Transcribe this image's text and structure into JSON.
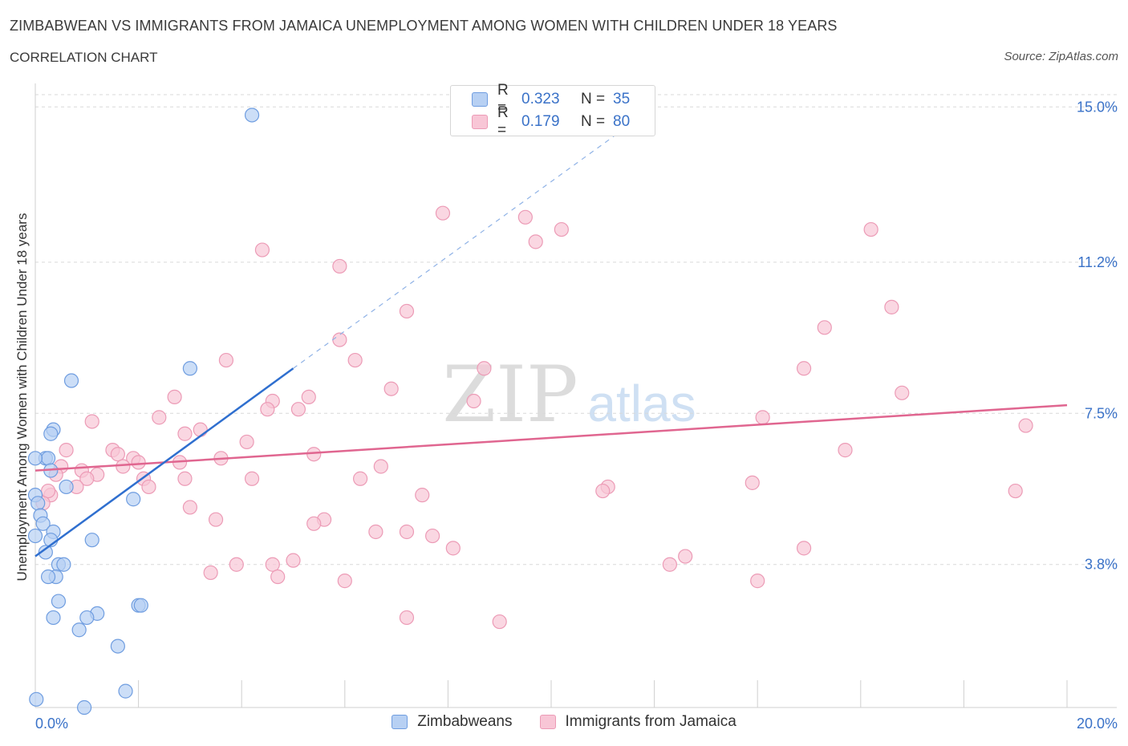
{
  "header": {
    "title": "ZIMBABWEAN VS IMMIGRANTS FROM JAMAICA UNEMPLOYMENT AMONG WOMEN WITH CHILDREN UNDER 18 YEARS",
    "subtitle": "CORRELATION CHART",
    "source": "Source: ZipAtlas.com"
  },
  "watermark": {
    "zip": "ZIP",
    "atlas": "atlas"
  },
  "legend": {
    "r_label": "R =",
    "n_label": "N =",
    "series1": {
      "r": "0.323",
      "n": "35"
    },
    "series2": {
      "r": "0.179",
      "n": "80"
    }
  },
  "colors": {
    "series1_fill": "#b7d0f3",
    "series1_stroke": "#6f9de0",
    "series1_line": "#2f6fcf",
    "series2_fill": "#f8c6d6",
    "series2_stroke": "#ec9bb6",
    "series2_line": "#e06690",
    "tick_text": "#3a72c8",
    "grid": "#d9d9d9"
  },
  "chart_data": {
    "type": "scatter",
    "title": "ZIMBABWEAN VS IMMIGRANTS FROM JAMAICA UNEMPLOYMENT AMONG WOMEN WITH CHILDREN UNDER 18 YEARS",
    "xlabel": "",
    "ylabel": "Unemployment Among Women with Children Under 18 years",
    "xlim": [
      0,
      20
    ],
    "ylim": [
      0.3,
      15.3
    ],
    "x_tick_labels": {
      "min": "0.0%",
      "max": "20.0%"
    },
    "y_ticks": [
      {
        "value": 3.8,
        "label": "3.8%"
      },
      {
        "value": 7.5,
        "label": "7.5%"
      },
      {
        "value": 11.2,
        "label": "11.2%"
      },
      {
        "value": 15.0,
        "label": "15.0%"
      }
    ],
    "series": [
      {
        "name": "Zimbabweans",
        "r": 0.323,
        "n": 35,
        "points": [
          [
            4.2,
            14.8
          ],
          [
            3.0,
            8.6
          ],
          [
            0.7,
            8.3
          ],
          [
            0.35,
            7.1
          ],
          [
            0.3,
            7.0
          ],
          [
            0.2,
            6.4
          ],
          [
            0.25,
            6.4
          ],
          [
            0.0,
            6.4
          ],
          [
            0.3,
            6.1
          ],
          [
            0.6,
            5.7
          ],
          [
            1.9,
            5.4
          ],
          [
            0.0,
            5.5
          ],
          [
            0.05,
            5.3
          ],
          [
            0.1,
            5.0
          ],
          [
            0.15,
            4.8
          ],
          [
            0.35,
            4.6
          ],
          [
            0.0,
            4.5
          ],
          [
            0.3,
            4.4
          ],
          [
            1.1,
            4.4
          ],
          [
            0.2,
            4.1
          ],
          [
            0.45,
            3.8
          ],
          [
            0.55,
            3.8
          ],
          [
            0.4,
            3.5
          ],
          [
            0.25,
            3.5
          ],
          [
            0.45,
            2.9
          ],
          [
            2.0,
            2.8
          ],
          [
            2.05,
            2.8
          ],
          [
            1.2,
            2.6
          ],
          [
            0.35,
            2.5
          ],
          [
            1.0,
            2.5
          ],
          [
            0.85,
            2.2
          ],
          [
            1.6,
            1.8
          ],
          [
            1.75,
            0.7
          ],
          [
            0.95,
            0.3
          ],
          [
            0.02,
            0.5
          ]
        ],
        "trend": {
          "x0": 0.0,
          "y0": 4.0,
          "x1": 5.0,
          "y1": 8.6,
          "dash_x1": 12.0,
          "dash_y1": 15.0
        }
      },
      {
        "name": "Immigrants from Jamaica",
        "r": 0.179,
        "n": 80,
        "points": [
          [
            7.9,
            12.4
          ],
          [
            9.5,
            12.3
          ],
          [
            10.2,
            12.0
          ],
          [
            9.7,
            11.7
          ],
          [
            4.4,
            11.5
          ],
          [
            5.9,
            11.1
          ],
          [
            16.2,
            12.0
          ],
          [
            7.2,
            10.0
          ],
          [
            16.6,
            10.1
          ],
          [
            15.3,
            9.6
          ],
          [
            5.9,
            9.3
          ],
          [
            3.7,
            8.8
          ],
          [
            6.2,
            8.8
          ],
          [
            8.7,
            8.6
          ],
          [
            14.9,
            8.6
          ],
          [
            6.9,
            8.1
          ],
          [
            16.8,
            8.0
          ],
          [
            5.3,
            7.9
          ],
          [
            2.7,
            7.9
          ],
          [
            4.6,
            7.8
          ],
          [
            8.5,
            7.8
          ],
          [
            4.5,
            7.6
          ],
          [
            5.1,
            7.6
          ],
          [
            2.4,
            7.4
          ],
          [
            1.1,
            7.3
          ],
          [
            14.1,
            7.4
          ],
          [
            19.2,
            7.2
          ],
          [
            3.2,
            7.1
          ],
          [
            2.9,
            7.0
          ],
          [
            4.1,
            6.8
          ],
          [
            0.6,
            6.6
          ],
          [
            1.5,
            6.6
          ],
          [
            1.6,
            6.5
          ],
          [
            5.4,
            6.5
          ],
          [
            15.7,
            6.6
          ],
          [
            1.9,
            6.4
          ],
          [
            3.6,
            6.4
          ],
          [
            2.0,
            6.3
          ],
          [
            2.8,
            6.3
          ],
          [
            1.7,
            6.2
          ],
          [
            0.5,
            6.2
          ],
          [
            6.7,
            6.2
          ],
          [
            0.9,
            6.1
          ],
          [
            0.4,
            6.0
          ],
          [
            1.2,
            6.0
          ],
          [
            1.0,
            5.9
          ],
          [
            4.2,
            5.9
          ],
          [
            2.1,
            5.9
          ],
          [
            2.9,
            5.9
          ],
          [
            6.3,
            5.9
          ],
          [
            0.8,
            5.7
          ],
          [
            2.2,
            5.7
          ],
          [
            13.9,
            5.8
          ],
          [
            11.1,
            5.7
          ],
          [
            11.0,
            5.6
          ],
          [
            0.3,
            5.5
          ],
          [
            0.25,
            5.6
          ],
          [
            7.5,
            5.5
          ],
          [
            19.0,
            5.6
          ],
          [
            3.0,
            5.2
          ],
          [
            3.5,
            4.9
          ],
          [
            5.6,
            4.9
          ],
          [
            5.4,
            4.8
          ],
          [
            6.6,
            4.6
          ],
          [
            7.2,
            4.6
          ],
          [
            7.7,
            4.5
          ],
          [
            8.1,
            4.2
          ],
          [
            14.9,
            4.2
          ],
          [
            12.6,
            4.0
          ],
          [
            5.0,
            3.9
          ],
          [
            4.6,
            3.8
          ],
          [
            3.9,
            3.8
          ],
          [
            12.3,
            3.8
          ],
          [
            3.4,
            3.6
          ],
          [
            4.7,
            3.5
          ],
          [
            6.0,
            3.4
          ],
          [
            14.0,
            3.4
          ],
          [
            7.2,
            2.5
          ],
          [
            9.0,
            2.4
          ],
          [
            0.15,
            5.3
          ]
        ],
        "trend": {
          "x0": 0.0,
          "y0": 6.1,
          "x1": 20.0,
          "y1": 7.7
        }
      }
    ]
  }
}
